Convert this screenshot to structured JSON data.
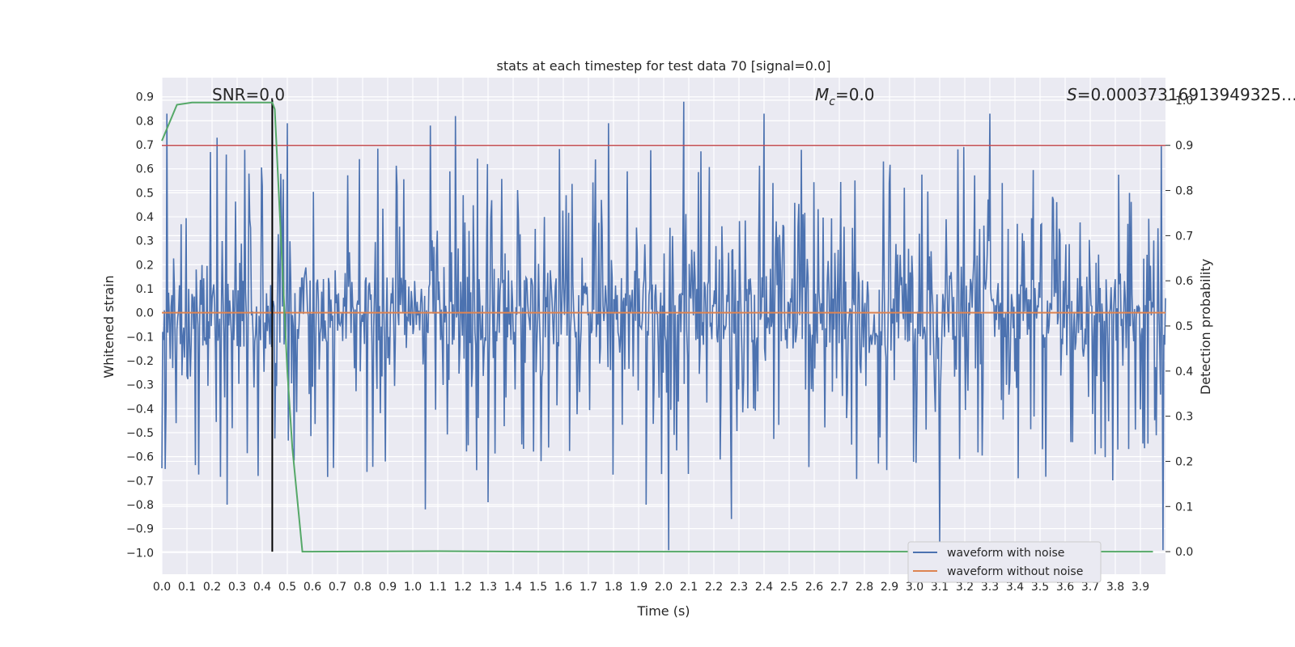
{
  "chart_data": {
    "type": "line",
    "title": "stats at each timestep for test data 70 [signal=0.0]",
    "xlabel": "Time (s)",
    "ylabel_left": "Whitened strain",
    "ylabel_right": "Detection probability",
    "xlim": [
      0.0,
      4.0
    ],
    "ylim_left": [
      -1.09,
      0.98
    ],
    "ylim_right": [
      -0.05,
      1.05
    ],
    "x_ticks": [
      "0.0",
      "0.1",
      "0.2",
      "0.3",
      "0.4",
      "0.5",
      "0.6",
      "0.7",
      "0.8",
      "0.9",
      "1.0",
      "1.1",
      "1.2",
      "1.3",
      "1.4",
      "1.5",
      "1.6",
      "1.7",
      "1.8",
      "1.9",
      "2.0",
      "2.1",
      "2.2",
      "2.3",
      "2.4",
      "2.5",
      "2.6",
      "2.7",
      "2.8",
      "2.9",
      "3.0",
      "3.1",
      "3.2",
      "3.3",
      "3.4",
      "3.5",
      "3.6",
      "3.7",
      "3.8",
      "3.9"
    ],
    "y_ticks_left": [
      "0.9",
      "0.8",
      "0.7",
      "0.6",
      "0.5",
      "0.4",
      "0.3",
      "0.2",
      "0.1",
      "0.0",
      "−0.1",
      "−0.2",
      "−0.3",
      "−0.4",
      "−0.5",
      "−0.6",
      "−0.7",
      "−0.8",
      "−0.9",
      "−1.0"
    ],
    "y_ticks_right": [
      "1.0",
      "0.9",
      "0.8",
      "0.7",
      "0.6",
      "0.5",
      "0.4",
      "0.3",
      "0.2",
      "0.1",
      "0.0"
    ],
    "grid": true,
    "legend_placement": "lower-right",
    "annotations": {
      "snr": "SNR=0.0",
      "mc_symbol": "M",
      "mc_sub": "c",
      "mc_value": "=0.0",
      "s_symbol": "S",
      "s_value": "=0.00037316913949325…"
    },
    "series": [
      {
        "name": "waveform with noise",
        "axis": "left",
        "color": "#4c72b0",
        "kind": "noise",
        "n_points": 1200,
        "typical_range": [
          -0.35,
          0.4
        ],
        "peaks": [
          {
            "x": 0.02,
            "y": 0.83
          },
          {
            "x": 0.22,
            "y": 0.73
          },
          {
            "x": 0.5,
            "y": 0.79
          },
          {
            "x": 1.07,
            "y": 0.78
          },
          {
            "x": 1.17,
            "y": 0.82
          },
          {
            "x": 1.78,
            "y": 0.79
          },
          {
            "x": 2.08,
            "y": 0.88
          },
          {
            "x": 2.4,
            "y": 0.83
          },
          {
            "x": 3.3,
            "y": 0.83
          },
          {
            "x": 0.26,
            "y": -0.8
          },
          {
            "x": 1.05,
            "y": -0.82
          },
          {
            "x": 2.02,
            "y": -0.99
          },
          {
            "x": 3.1,
            "y": -0.98
          },
          {
            "x": 3.99,
            "y": -0.99
          },
          {
            "x": 1.3,
            "y": -0.79
          },
          {
            "x": 2.27,
            "y": -0.86
          },
          {
            "x": 1.93,
            "y": -0.8
          }
        ]
      },
      {
        "name": "waveform without noise",
        "axis": "left",
        "color": "#dd8452",
        "x": [
          0.0,
          4.0
        ],
        "y": [
          0.0,
          0.0
        ]
      },
      {
        "name": "",
        "axis": "right",
        "color": "#55a868",
        "x": [
          0.0,
          0.06,
          0.12,
          0.2,
          0.3,
          0.44,
          0.45,
          0.5,
          0.52,
          0.56,
          1.1,
          1.5,
          2.0,
          3.0,
          3.95
        ],
        "y": [
          0.91,
          0.99,
          0.995,
          0.995,
          0.995,
          0.995,
          0.98,
          0.4,
          0.23,
          0.0,
          0.001,
          0.0,
          0.0,
          0.0,
          0.0
        ]
      }
    ],
    "threshold_right": 0.9,
    "threshold_color": "#c44e52",
    "marker_x": 0.44,
    "marker_color": "#000000"
  }
}
